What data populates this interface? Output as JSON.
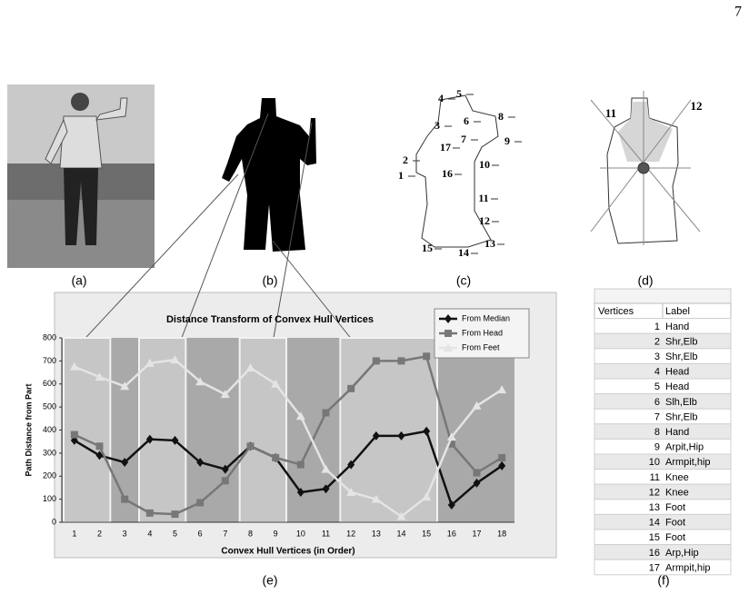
{
  "page_number": "7",
  "panel_labels": [
    "(a)",
    "(b)",
    "(c)",
    "(d)",
    "(e)",
    "(f)"
  ],
  "panel_c_labels": [
    1,
    2,
    3,
    4,
    5,
    6,
    7,
    8,
    9,
    10,
    11,
    12,
    13,
    14,
    15,
    16,
    17
  ],
  "panel_d_labels": [
    11,
    12
  ],
  "chart_data": {
    "type": "line",
    "title": "Distance Transform of Convex Hull Vertices",
    "x_label": "Convex Hull Vertices (in Order)",
    "y_label": "Path Distance from Part",
    "categories": [
      "1",
      "2",
      "3",
      "4",
      "5",
      "6",
      "7",
      "8",
      "9",
      "10",
      "11",
      "12",
      "13",
      "14",
      "15",
      "16",
      "17",
      "18"
    ],
    "ylim": [
      0,
      800
    ],
    "yticks": [
      0,
      100,
      200,
      300,
      400,
      500,
      600,
      700,
      800
    ],
    "legend": "upper right",
    "series": [
      {
        "name": "From Median",
        "color": "#111111",
        "marker": "diamond",
        "values": [
          355,
          290,
          260,
          360,
          355,
          260,
          230,
          330,
          280,
          130,
          145,
          250,
          375,
          375,
          395,
          75,
          170,
          245
        ]
      },
      {
        "name": "From Head",
        "color": "#777777",
        "marker": "square",
        "values": [
          380,
          330,
          100,
          40,
          35,
          85,
          180,
          330,
          280,
          250,
          475,
          580,
          700,
          700,
          720,
          340,
          215,
          280
        ]
      },
      {
        "name": "From Feet",
        "color": "#e4e4e4",
        "marker": "triangle",
        "values": [
          675,
          630,
          590,
          690,
          705,
          610,
          555,
          670,
          600,
          460,
          230,
          130,
          100,
          25,
          110,
          370,
          505,
          575
        ]
      }
    ]
  },
  "table": {
    "header": [
      "Vertices",
      "Label"
    ],
    "rows": [
      [
        1,
        "Hand"
      ],
      [
        2,
        "Shr,Elb"
      ],
      [
        3,
        "Shr,Elb"
      ],
      [
        4,
        "Head"
      ],
      [
        5,
        "Head"
      ],
      [
        6,
        "Slh,Elb"
      ],
      [
        7,
        "Shr,Elb"
      ],
      [
        8,
        "Hand"
      ],
      [
        9,
        "Arpit,Hip"
      ],
      [
        10,
        "Armpit,hip"
      ],
      [
        11,
        "Knee"
      ],
      [
        12,
        "Knee"
      ],
      [
        13,
        "Foot"
      ],
      [
        14,
        "Foot"
      ],
      [
        15,
        "Foot"
      ],
      [
        16,
        "Arp,Hip"
      ],
      [
        17,
        "Armpit,hip"
      ]
    ]
  }
}
